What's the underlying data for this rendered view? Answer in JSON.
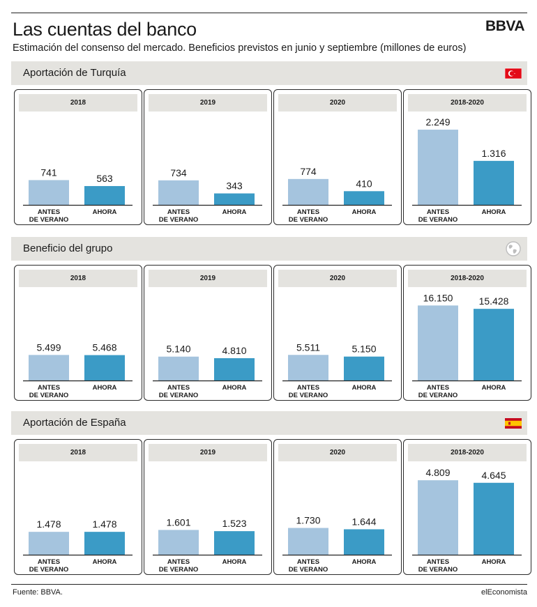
{
  "header": {
    "title": "Las cuentas del banco",
    "subtitle": "Estimación del consenso del mercado. Beneficios previstos en junio y septiembre (millones de euros)",
    "logo": "BBVA"
  },
  "footer": {
    "source": "Fuente: BBVA.",
    "brand": "elEconomista"
  },
  "colors": {
    "antes": "#a5c4de",
    "ahora": "#3b9bc6",
    "section_bg": "#e4e3df"
  },
  "category_labels": {
    "antes_line1": "ANTES",
    "antes_line2": "DE VERANO",
    "ahora": "AHORA"
  },
  "sections": [
    {
      "title": "Aportación de Turquía",
      "icon": "turkey-flag-icon"
    },
    {
      "title": "Beneficio del grupo",
      "icon": "globe-icon"
    },
    {
      "title": "Aportación de España",
      "icon": "spain-flag-icon"
    }
  ],
  "chart_data": [
    {
      "type": "bar",
      "section": "Aportación de Turquía",
      "title": "2018",
      "categories": [
        "ANTES DE VERANO",
        "AHORA"
      ],
      "values": [
        741,
        563
      ],
      "labels": [
        "741",
        "563"
      ],
      "ylim": [
        0,
        2500
      ]
    },
    {
      "type": "bar",
      "section": "Aportación de Turquía",
      "title": "2019",
      "categories": [
        "ANTES DE VERANO",
        "AHORA"
      ],
      "values": [
        734,
        343
      ],
      "labels": [
        "734",
        "343"
      ],
      "ylim": [
        0,
        2500
      ]
    },
    {
      "type": "bar",
      "section": "Aportación de Turquía",
      "title": "2020",
      "categories": [
        "ANTES DE VERANO",
        "AHORA"
      ],
      "values": [
        774,
        410
      ],
      "labels": [
        "774",
        "410"
      ],
      "ylim": [
        0,
        2500
      ]
    },
    {
      "type": "bar",
      "section": "Aportación de Turquía",
      "title": "2018-2020",
      "categories": [
        "ANTES DE VERANO",
        "AHORA"
      ],
      "values": [
        2249,
        1316
      ],
      "labels": [
        "2.249",
        "1.316"
      ],
      "ylim": [
        0,
        2500
      ]
    },
    {
      "type": "bar",
      "section": "Beneficio del grupo",
      "title": "2018",
      "categories": [
        "ANTES DE VERANO",
        "AHORA"
      ],
      "values": [
        5499,
        5468
      ],
      "labels": [
        "5.499",
        "5.468"
      ],
      "ylim": [
        0,
        18000
      ]
    },
    {
      "type": "bar",
      "section": "Beneficio del grupo",
      "title": "2019",
      "categories": [
        "ANTES DE VERANO",
        "AHORA"
      ],
      "values": [
        5140,
        4810
      ],
      "labels": [
        "5.140",
        "4.810"
      ],
      "ylim": [
        0,
        18000
      ]
    },
    {
      "type": "bar",
      "section": "Beneficio del grupo",
      "title": "2020",
      "categories": [
        "ANTES DE VERANO",
        "AHORA"
      ],
      "values": [
        5511,
        5150
      ],
      "labels": [
        "5.511",
        "5.150"
      ],
      "ylim": [
        0,
        18000
      ]
    },
    {
      "type": "bar",
      "section": "Beneficio del grupo",
      "title": "2018-2020",
      "categories": [
        "ANTES DE VERANO",
        "AHORA"
      ],
      "values": [
        16150,
        15428
      ],
      "labels": [
        "16.150",
        "15.428"
      ],
      "ylim": [
        0,
        18000
      ]
    },
    {
      "type": "bar",
      "section": "Aportación de España",
      "title": "2018",
      "categories": [
        "ANTES DE VERANO",
        "AHORA"
      ],
      "values": [
        1478,
        1478
      ],
      "labels": [
        "1.478",
        "1.478"
      ],
      "ylim": [
        0,
        5400
      ]
    },
    {
      "type": "bar",
      "section": "Aportación de España",
      "title": "2019",
      "categories": [
        "ANTES DE VERANO",
        "AHORA"
      ],
      "values": [
        1601,
        1523
      ],
      "labels": [
        "1.601",
        "1.523"
      ],
      "ylim": [
        0,
        5400
      ]
    },
    {
      "type": "bar",
      "section": "Aportación de España",
      "title": "2020",
      "categories": [
        "ANTES DE VERANO",
        "AHORA"
      ],
      "values": [
        1730,
        1644
      ],
      "labels": [
        "1.730",
        "1.644"
      ],
      "ylim": [
        0,
        5400
      ]
    },
    {
      "type": "bar",
      "section": "Aportación de España",
      "title": "2018-2020",
      "categories": [
        "ANTES DE VERANO",
        "AHORA"
      ],
      "values": [
        4809,
        4645
      ],
      "labels": [
        "4.809",
        "4.645"
      ],
      "ylim": [
        0,
        5400
      ]
    }
  ]
}
